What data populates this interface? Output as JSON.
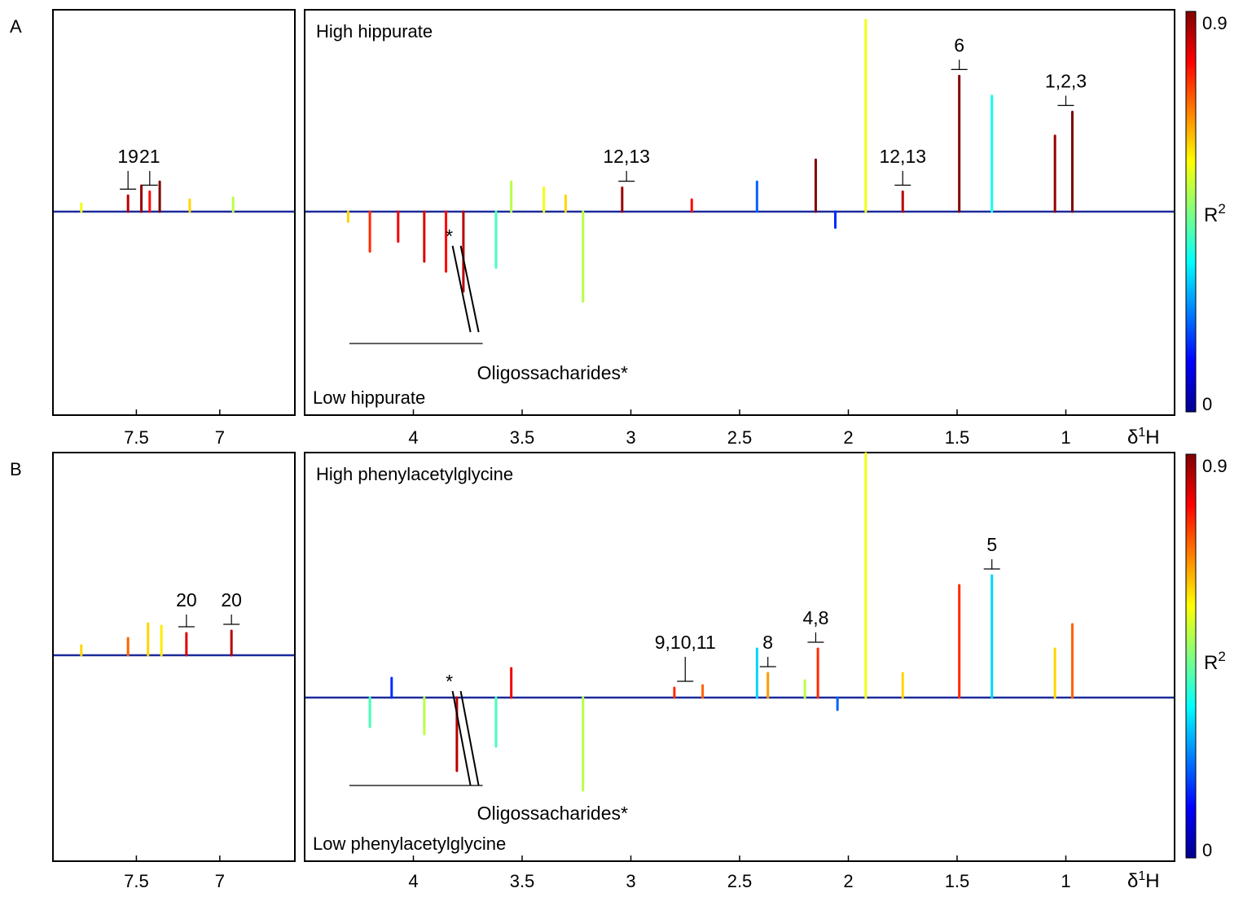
{
  "figure": {
    "colorbar": {
      "label": "R",
      "label_sup": "2",
      "max_label": "0.9",
      "min_label": "0"
    },
    "xaxis_unit": {
      "delta": "δ",
      "sup": "1",
      "H": "H"
    }
  },
  "chart_data": [
    {
      "panel": "A",
      "type": "line",
      "title": "A",
      "high_label": "High hippurate",
      "low_label": "Low hippurate",
      "aromatic_ticks": [
        "7.5",
        "7"
      ],
      "aliphatic_ticks": [
        "4",
        "3.5",
        "3",
        "2.5",
        "2",
        "1.5",
        "1"
      ],
      "xlabel": "δ1H",
      "xlim_aromatic": [
        8.0,
        6.55
      ],
      "xlim_aliphatic": [
        4.5,
        0.5
      ],
      "colorbar_range": [
        0,
        0.9
      ],
      "annotations": [
        {
          "text": "19",
          "ppm": 7.55
        },
        {
          "text": "21",
          "ppm": 7.42
        },
        {
          "text": "12,13",
          "ppm": 3.02
        },
        {
          "text": "12,13",
          "ppm": 1.75
        },
        {
          "text": "6",
          "ppm": 1.49
        },
        {
          "text": "1,2,3",
          "ppm": 1.0
        },
        {
          "text": "*",
          "ppm": 3.76
        },
        {
          "text": "Oligossacharides*",
          "ppm": 3.7
        }
      ],
      "peaks": [
        {
          "ppm": 7.83,
          "h": 0.04,
          "r2": 0.55
        },
        {
          "ppm": 7.55,
          "h": 0.08,
          "r2": 0.85
        },
        {
          "ppm": 7.47,
          "h": 0.13,
          "r2": 0.88
        },
        {
          "ppm": 7.42,
          "h": 0.1,
          "r2": 0.78
        },
        {
          "ppm": 7.36,
          "h": 0.15,
          "r2": 0.9
        },
        {
          "ppm": 7.18,
          "h": 0.06,
          "r2": 0.6
        },
        {
          "ppm": 6.92,
          "h": 0.07,
          "r2": 0.5
        },
        {
          "ppm": 4.3,
          "h": -0.05,
          "r2": 0.6
        },
        {
          "ppm": 4.2,
          "h": -0.2,
          "r2": 0.75
        },
        {
          "ppm": 4.07,
          "h": -0.15,
          "r2": 0.8
        },
        {
          "ppm": 3.95,
          "h": -0.25,
          "r2": 0.82
        },
        {
          "ppm": 3.85,
          "h": -0.3,
          "r2": 0.78
        },
        {
          "ppm": 3.77,
          "h": -0.4,
          "r2": 0.85
        },
        {
          "ppm": 3.62,
          "h": -0.28,
          "r2": 0.4
        },
        {
          "ppm": 3.55,
          "h": 0.15,
          "r2": 0.5
        },
        {
          "ppm": 3.4,
          "h": 0.12,
          "r2": 0.55
        },
        {
          "ppm": 3.3,
          "h": 0.08,
          "r2": 0.6
        },
        {
          "ppm": 3.22,
          "h": -0.45,
          "r2": 0.5
        },
        {
          "ppm": 3.04,
          "h": 0.12,
          "r2": 0.88
        },
        {
          "ppm": 2.72,
          "h": 0.06,
          "r2": 0.78
        },
        {
          "ppm": 2.42,
          "h": 0.15,
          "r2": 0.2
        },
        {
          "ppm": 2.15,
          "h": 0.26,
          "r2": 0.9
        },
        {
          "ppm": 2.06,
          "h": -0.08,
          "r2": 0.15
        },
        {
          "ppm": 1.92,
          "h": 0.96,
          "r2": 0.55
        },
        {
          "ppm": 1.75,
          "h": 0.1,
          "r2": 0.85
        },
        {
          "ppm": 1.49,
          "h": 0.68,
          "r2": 0.9
        },
        {
          "ppm": 1.34,
          "h": 0.58,
          "r2": 0.35
        },
        {
          "ppm": 1.05,
          "h": 0.38,
          "r2": 0.88
        },
        {
          "ppm": 0.97,
          "h": 0.5,
          "r2": 0.9
        }
      ]
    },
    {
      "panel": "B",
      "type": "line",
      "title": "B",
      "high_label": "High phenylacetylglycine",
      "low_label": "Low phenylacetylglycine",
      "aromatic_ticks": [
        "7.5",
        "7"
      ],
      "aliphatic_ticks": [
        "4",
        "3.5",
        "3",
        "2.5",
        "2",
        "1.5",
        "1"
      ],
      "xlabel": "δ1H",
      "xlim_aromatic": [
        8.0,
        6.55
      ],
      "xlim_aliphatic": [
        4.5,
        0.5
      ],
      "colorbar_range": [
        0,
        0.9
      ],
      "annotations": [
        {
          "text": "20",
          "ppm": 7.2
        },
        {
          "text": "20",
          "ppm": 6.93
        },
        {
          "text": "9,10,11",
          "ppm": 2.75
        },
        {
          "text": "8",
          "ppm": 2.37
        },
        {
          "text": "4,8",
          "ppm": 2.15
        },
        {
          "text": "5",
          "ppm": 1.34
        },
        {
          "text": "*",
          "ppm": 3.76
        },
        {
          "text": "Oligossacharides*",
          "ppm": 3.7
        }
      ],
      "peaks": [
        {
          "ppm": 7.83,
          "h": 0.04,
          "r2": 0.6
        },
        {
          "ppm": 7.55,
          "h": 0.07,
          "r2": 0.7
        },
        {
          "ppm": 7.43,
          "h": 0.13,
          "r2": 0.6
        },
        {
          "ppm": 7.35,
          "h": 0.12,
          "r2": 0.58
        },
        {
          "ppm": 7.2,
          "h": 0.09,
          "r2": 0.82
        },
        {
          "ppm": 6.93,
          "h": 0.1,
          "r2": 0.85
        },
        {
          "ppm": 4.2,
          "h": -0.12,
          "r2": 0.4
        },
        {
          "ppm": 4.1,
          "h": 0.08,
          "r2": 0.15
        },
        {
          "ppm": 3.95,
          "h": -0.15,
          "r2": 0.5
        },
        {
          "ppm": 3.8,
          "h": -0.3,
          "r2": 0.85
        },
        {
          "ppm": 3.62,
          "h": -0.2,
          "r2": 0.4
        },
        {
          "ppm": 3.55,
          "h": 0.12,
          "r2": 0.8
        },
        {
          "ppm": 3.22,
          "h": -0.38,
          "r2": 0.5
        },
        {
          "ppm": 2.8,
          "h": 0.04,
          "r2": 0.75
        },
        {
          "ppm": 2.67,
          "h": 0.05,
          "r2": 0.7
        },
        {
          "ppm": 2.42,
          "h": 0.2,
          "r2": 0.3
        },
        {
          "ppm": 2.37,
          "h": 0.1,
          "r2": 0.65
        },
        {
          "ppm": 2.2,
          "h": 0.07,
          "r2": 0.5
        },
        {
          "ppm": 2.14,
          "h": 0.2,
          "r2": 0.75
        },
        {
          "ppm": 2.05,
          "h": -0.05,
          "r2": 0.2
        },
        {
          "ppm": 1.92,
          "h": 1.0,
          "r2": 0.55
        },
        {
          "ppm": 1.75,
          "h": 0.1,
          "r2": 0.6
        },
        {
          "ppm": 1.49,
          "h": 0.46,
          "r2": 0.75
        },
        {
          "ppm": 1.34,
          "h": 0.5,
          "r2": 0.3
        },
        {
          "ppm": 1.05,
          "h": 0.2,
          "r2": 0.6
        },
        {
          "ppm": 0.97,
          "h": 0.3,
          "r2": 0.7
        }
      ]
    }
  ]
}
